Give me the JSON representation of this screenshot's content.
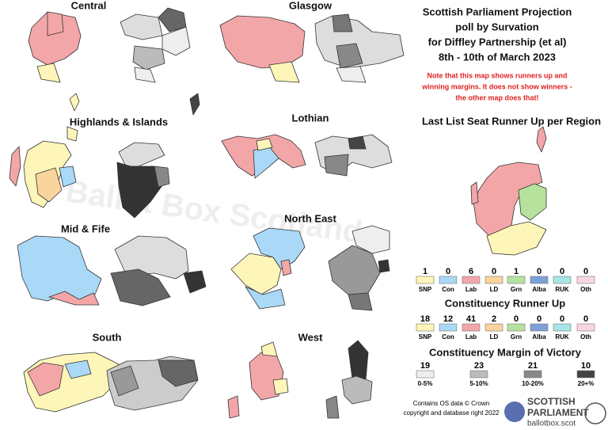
{
  "title": [
    "Scottish Parliament Projection",
    "poll by Survation",
    "for Diffley Partnership (et al)",
    "8th - 10th of March 2023"
  ],
  "note": [
    "Note that this map shows runners up and",
    "winning margins. It does not show winners -",
    "the other map does that!"
  ],
  "regions": [
    "Central",
    "Glasgow",
    "Highlands & Islands",
    "Lothian",
    "Mid & Fife",
    "North East",
    "South",
    "West"
  ],
  "watermark": "Ballot Box Scotland",
  "list_runner_up": {
    "title": "Last List Seat Runner Up per Region",
    "items": [
      {
        "label": "SNP",
        "count": 1,
        "color": "#fdf6b8"
      },
      {
        "label": "Con",
        "count": 0,
        "color": "#a9d9f7"
      },
      {
        "label": "Lab",
        "count": 6,
        "color": "#f3a6a8"
      },
      {
        "label": "LD",
        "count": 0,
        "color": "#f9d49c"
      },
      {
        "label": "Grn",
        "count": 1,
        "color": "#b6e29e"
      },
      {
        "label": "Alba",
        "count": 0,
        "color": "#7f9fd9"
      },
      {
        "label": "RUK",
        "count": 0,
        "color": "#a6e6e6"
      },
      {
        "label": "Oth",
        "count": 0,
        "color": "#f9d6e0"
      }
    ]
  },
  "constituency_runner_up": {
    "title": "Constituency Runner Up",
    "items": [
      {
        "label": "SNP",
        "count": 18,
        "color": "#fdf6b8"
      },
      {
        "label": "Con",
        "count": 12,
        "color": "#a9d9f7"
      },
      {
        "label": "Lab",
        "count": 41,
        "color": "#f3a6a8"
      },
      {
        "label": "LD",
        "count": 2,
        "color": "#f9d49c"
      },
      {
        "label": "Grn",
        "count": 0,
        "color": "#b6e29e"
      },
      {
        "label": "Alba",
        "count": 0,
        "color": "#7f9fd9"
      },
      {
        "label": "RUK",
        "count": 0,
        "color": "#a6e6e6"
      },
      {
        "label": "Oth",
        "count": 0,
        "color": "#f9d6e0"
      }
    ]
  },
  "margin": {
    "title": "Constituency Margin of Victory",
    "items": [
      {
        "label": "0-5%",
        "count": 19,
        "color": "#eeeeee"
      },
      {
        "label": "5-10%",
        "count": 23,
        "color": "#bbbbbb"
      },
      {
        "label": "10-20%",
        "count": 21,
        "color": "#888888"
      },
      {
        "label": "20+%",
        "count": 10,
        "color": "#444444"
      }
    ]
  },
  "credit": [
    "Contains OS data © Crown",
    "copyright and database right 2022"
  ],
  "logo": [
    "SCOTTISH",
    "PARLIAMENT",
    "ballotbox.scot"
  ]
}
